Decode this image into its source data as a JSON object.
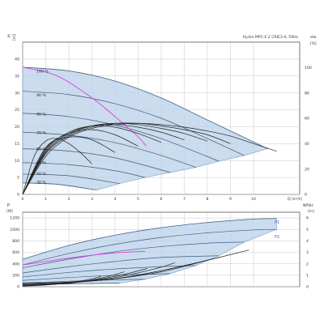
{
  "chart_data": [
    {
      "type": "line",
      "title": "Hydro MPC-E 2 CRIE3-4, 50Hz",
      "ylabel": "H",
      "ylabel_unit": "[m]",
      "xlabel": "Q",
      "xlabel_unit": "[m³/h]",
      "y2label": "eta",
      "y2label_unit": "[%]",
      "xlim": [
        0,
        12
      ],
      "ylim": [
        0,
        45
      ],
      "y2lim": [
        0,
        120
      ],
      "grid": true,
      "xticks": [
        0,
        1,
        2,
        3,
        4,
        5,
        6,
        7,
        8,
        9,
        10
      ],
      "yticks": [
        0,
        5,
        10,
        15,
        20,
        25,
        30,
        35,
        40
      ],
      "y2ticks": [
        0,
        20,
        40,
        60,
        80,
        100
      ],
      "speed_labels": [
        {
          "label": "100 %",
          "at": [
            0.6,
            36.0
          ]
        },
        {
          "label": "90 %",
          "at": [
            0.6,
            29.0
          ]
        },
        {
          "label": "80 %",
          "at": [
            0.6,
            23.3
          ]
        },
        {
          "label": "70 %",
          "at": [
            0.6,
            17.8
          ]
        },
        {
          "label": "60 %",
          "at": [
            0.6,
            13.1
          ]
        },
        {
          "label": "50 %",
          "at": [
            0.6,
            9.0
          ]
        },
        {
          "label": "40 %",
          "at": [
            0.6,
            5.7
          ]
        },
        {
          "label": "30 %",
          "at": [
            0.6,
            3.2
          ]
        }
      ],
      "series": [
        {
          "role": "speed-curve",
          "x": [
            0,
            2,
            4,
            6,
            8,
            10,
            10.6
          ],
          "y": [
            37.6,
            36.5,
            33.5,
            28.5,
            22.0,
            15.5,
            13.5
          ]
        },
        {
          "role": "speed-curve",
          "x": [
            0,
            2,
            4,
            6,
            8,
            9.6
          ],
          "y": [
            30.5,
            29.5,
            26.8,
            22.5,
            16.5,
            11.5
          ]
        },
        {
          "role": "speed-curve",
          "x": [
            0,
            2,
            4,
            6,
            8.5
          ],
          "y": [
            24.0,
            23.0,
            20.5,
            16.5,
            9.8
          ]
        },
        {
          "role": "speed-curve",
          "x": [
            0,
            2,
            4,
            6,
            7.5
          ],
          "y": [
            18.4,
            17.5,
            15.3,
            11.5,
            8.0
          ]
        },
        {
          "role": "speed-curve",
          "x": [
            0,
            2,
            4,
            6.4
          ],
          "y": [
            13.5,
            12.8,
            10.8,
            6.5
          ]
        },
        {
          "role": "speed-curve",
          "x": [
            0,
            2,
            4,
            5.3
          ],
          "y": [
            9.4,
            8.8,
            7.0,
            5.0
          ]
        },
        {
          "role": "speed-curve",
          "x": [
            0,
            2,
            4.2
          ],
          "y": [
            6.0,
            5.5,
            3.2
          ]
        },
        {
          "role": "speed-curve",
          "x": [
            0,
            1.5,
            3.2
          ],
          "y": [
            3.4,
            3.0,
            1.3
          ]
        },
        {
          "role": "reference-curve",
          "color": "#e040e0",
          "x": [
            0,
            1.5,
            3,
            4,
            5,
            5.35
          ],
          "y": [
            37.6,
            35.0,
            28.5,
            23.0,
            17.0,
            14.3
          ]
        },
        {
          "role": "efficiency-curve",
          "x": [
            0,
            1,
            2,
            3,
            4,
            5,
            6,
            7,
            8,
            9,
            10,
            11
          ],
          "y": [
            0,
            30,
            45,
            52,
            55,
            56,
            55,
            53,
            50,
            46,
            40,
            34
          ]
        },
        {
          "role": "efficiency-curve",
          "x": [
            0,
            1,
            2,
            3,
            4,
            5,
            6,
            7,
            8,
            9
          ],
          "y": [
            0,
            32,
            46,
            53,
            56,
            56,
            54,
            51,
            47,
            40
          ]
        },
        {
          "role": "efficiency-curve",
          "x": [
            0,
            1,
            2,
            3,
            4,
            5,
            6,
            7,
            8
          ],
          "y": [
            0,
            33,
            47,
            54,
            56,
            55,
            52,
            48,
            42
          ]
        },
        {
          "role": "efficiency-curve",
          "x": [
            0,
            1,
            2,
            3,
            4,
            5,
            6,
            7
          ],
          "y": [
            0,
            34,
            48,
            54,
            55,
            53,
            49,
            43
          ]
        },
        {
          "role": "efficiency-curve",
          "x": [
            0,
            1,
            2,
            3,
            4,
            5,
            6
          ],
          "y": [
            0,
            35,
            49,
            54,
            53,
            48,
            41
          ]
        },
        {
          "role": "efficiency-curve",
          "x": [
            0,
            1,
            2,
            3,
            4,
            5
          ],
          "y": [
            0,
            36,
            48,
            51,
            47,
            38
          ]
        },
        {
          "role": "efficiency-curve",
          "x": [
            0,
            1,
            2,
            3,
            4
          ],
          "y": [
            0,
            37,
            45,
            43,
            33
          ]
        },
        {
          "role": "efficiency-curve",
          "x": [
            0,
            0.5,
            1,
            1.5,
            2,
            2.5,
            3
          ],
          "y": [
            0,
            30,
            42,
            44,
            40,
            33,
            24
          ]
        }
      ]
    },
    {
      "type": "line",
      "ylabel": "P",
      "ylabel_unit": "[W]",
      "y2label": "NPSH",
      "y2label_unit": "[m]",
      "xlim": [
        0,
        12
      ],
      "ylim": [
        0,
        1300
      ],
      "y2lim": [
        0,
        6.5
      ],
      "grid": true,
      "yticks": [
        0,
        200,
        400,
        600,
        800,
        1000,
        1200
      ],
      "y2ticks": [
        0,
        1,
        2,
        3,
        4,
        5,
        6
      ],
      "series": [
        {
          "name": "P1",
          "role": "power-curve",
          "x": [
            0,
            2,
            4,
            6,
            8,
            10,
            11.0
          ],
          "y": [
            480,
            720,
            900,
            1030,
            1120,
            1180,
            1190
          ]
        },
        {
          "name": "P2",
          "role": "power-curve",
          "x": [
            0,
            2,
            4,
            6,
            8,
            10,
            11.0
          ],
          "y": [
            380,
            580,
            740,
            860,
            940,
            990,
            1000
          ]
        },
        {
          "role": "power-curve",
          "x": [
            0,
            2,
            4,
            6,
            8,
            9.6
          ],
          "y": [
            330,
            480,
            610,
            700,
            760,
            780
          ]
        },
        {
          "role": "power-curve",
          "x": [
            0,
            2,
            4,
            6,
            8.5
          ],
          "y": [
            240,
            350,
            440,
            510,
            540
          ]
        },
        {
          "role": "power-curve",
          "x": [
            0,
            2,
            4,
            6,
            7.5
          ],
          "y": [
            170,
            250,
            310,
            350,
            370
          ]
        },
        {
          "role": "power-curve",
          "x": [
            0,
            2,
            4,
            6.4
          ],
          "y": [
            110,
            160,
            200,
            230
          ]
        },
        {
          "role": "power-curve",
          "x": [
            0,
            2,
            4,
            5.3
          ],
          "y": [
            65,
            95,
            120,
            130
          ]
        },
        {
          "role": "power-curve",
          "x": [
            0,
            2,
            4.2
          ],
          "y": [
            35,
            50,
            65
          ]
        },
        {
          "role": "reference-curve",
          "color": "#e040e0",
          "x": [
            0,
            1,
            2,
            3,
            4,
            5.3
          ],
          "y": [
            380,
            440,
            500,
            550,
            590,
            620
          ]
        },
        {
          "role": "npsh-curve",
          "x": [
            0,
            2,
            4,
            6,
            8,
            9.8
          ],
          "y": [
            0.3,
            0.4,
            0.7,
            1.3,
            2.3,
            3.2
          ]
        },
        {
          "role": "npsh-curve",
          "x": [
            0,
            2,
            4,
            6,
            8.6
          ],
          "y": [
            0.3,
            0.4,
            0.7,
            1.4,
            2.6
          ]
        },
        {
          "role": "npsh-curve",
          "x": [
            0,
            2,
            4,
            6,
            7.6
          ],
          "y": [
            0.2,
            0.35,
            0.7,
            1.4,
            2.1
          ]
        },
        {
          "role": "npsh-curve",
          "x": [
            0,
            2,
            4,
            5.8,
            6.6
          ],
          "y": [
            0.2,
            0.35,
            0.8,
            1.6,
            2.1
          ]
        },
        {
          "role": "npsh-curve",
          "x": [
            0,
            2,
            4,
            5.4
          ],
          "y": [
            0.15,
            0.3,
            0.9,
            1.6
          ]
        },
        {
          "role": "npsh-curve",
          "x": [
            0,
            2,
            3.5,
            4.4
          ],
          "y": [
            0.1,
            0.3,
            0.8,
            1.3
          ]
        },
        {
          "role": "npsh-curve",
          "x": [
            0,
            1.5,
            2.8,
            3.4
          ],
          "y": [
            0.1,
            0.25,
            0.6,
            0.9
          ]
        },
        {
          "role": "npsh-curve",
          "x": [
            0,
            1,
            2,
            2.5
          ],
          "y": [
            0.05,
            0.15,
            0.35,
            0.5
          ]
        }
      ]
    }
  ]
}
